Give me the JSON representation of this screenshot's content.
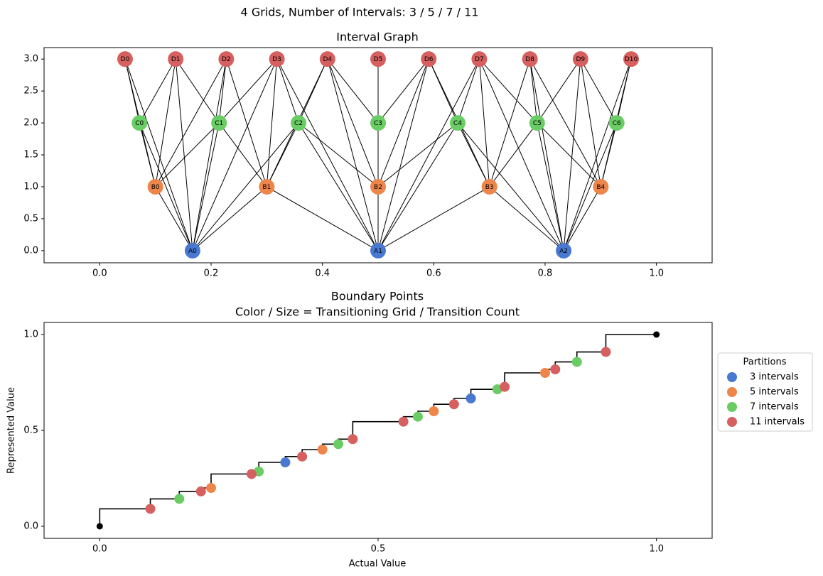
{
  "title": "4 Grids, Number of Intervals: 3 / 5 / 7 / 11",
  "chart_data": [
    {
      "type": "graph",
      "title": "Interval Graph",
      "xlim": [
        -0.1,
        1.1
      ],
      "ylim": [
        -0.19,
        3.18
      ],
      "xticks": [
        {
          "value": 0,
          "label": "0.0"
        },
        0.2,
        0.4,
        0.6,
        0.8,
        {
          "value": 1,
          "label": "1.0"
        }
      ],
      "yticks": [
        {
          "value": 0,
          "label": "0.0"
        },
        0.5,
        {
          "value": 1,
          "label": "1.0"
        },
        1.5,
        {
          "value": 2,
          "label": "2.0"
        },
        2.5,
        {
          "value": 3,
          "label": "3.0"
        }
      ],
      "edge_color": "#000000",
      "nodes": [
        {
          "label": "A0",
          "x": 0.1667,
          "y": 0,
          "color": "#4878d0"
        },
        {
          "label": "A1",
          "x": 0.5,
          "y": 0,
          "color": "#4878d0"
        },
        {
          "label": "A2",
          "x": 0.8333,
          "y": 0,
          "color": "#4878d0"
        },
        {
          "label": "B0",
          "x": 0.1,
          "y": 1,
          "color": "#ee854a"
        },
        {
          "label": "B1",
          "x": 0.3,
          "y": 1,
          "color": "#ee854a"
        },
        {
          "label": "B2",
          "x": 0.5,
          "y": 1,
          "color": "#ee854a"
        },
        {
          "label": "B3",
          "x": 0.7,
          "y": 1,
          "color": "#ee854a"
        },
        {
          "label": "B4",
          "x": 0.9,
          "y": 1,
          "color": "#ee854a"
        },
        {
          "label": "C0",
          "x": 0.0714,
          "y": 2,
          "color": "#6acc64"
        },
        {
          "label": "C1",
          "x": 0.2143,
          "y": 2,
          "color": "#6acc64"
        },
        {
          "label": "C2",
          "x": 0.3571,
          "y": 2,
          "color": "#6acc64"
        },
        {
          "label": "C3",
          "x": 0.5,
          "y": 2,
          "color": "#6acc64"
        },
        {
          "label": "C4",
          "x": 0.6429,
          "y": 2,
          "color": "#6acc64"
        },
        {
          "label": "C5",
          "x": 0.7857,
          "y": 2,
          "color": "#6acc64"
        },
        {
          "label": "C6",
          "x": 0.9286,
          "y": 2,
          "color": "#6acc64"
        },
        {
          "label": "D0",
          "x": 0.0455,
          "y": 3,
          "color": "#d65f5f"
        },
        {
          "label": "D1",
          "x": 0.1364,
          "y": 3,
          "color": "#d65f5f"
        },
        {
          "label": "D2",
          "x": 0.2273,
          "y": 3,
          "color": "#d65f5f"
        },
        {
          "label": "D3",
          "x": 0.3182,
          "y": 3,
          "color": "#d65f5f"
        },
        {
          "label": "D4",
          "x": 0.4091,
          "y": 3,
          "color": "#d65f5f"
        },
        {
          "label": "D5",
          "x": 0.5,
          "y": 3,
          "color": "#d65f5f"
        },
        {
          "label": "D6",
          "x": 0.5909,
          "y": 3,
          "color": "#d65f5f"
        },
        {
          "label": "D7",
          "x": 0.6818,
          "y": 3,
          "color": "#d65f5f"
        },
        {
          "label": "D8",
          "x": 0.7727,
          "y": 3,
          "color": "#d65f5f"
        },
        {
          "label": "D9",
          "x": 0.8636,
          "y": 3,
          "color": "#d65f5f"
        },
        {
          "label": "D10",
          "x": 0.9545,
          "y": 3,
          "color": "#d65f5f"
        }
      ],
      "edges": [
        [
          "A0",
          "B0"
        ],
        [
          "A0",
          "B1"
        ],
        [
          "A1",
          "B1"
        ],
        [
          "A1",
          "B2"
        ],
        [
          "A1",
          "B3"
        ],
        [
          "A2",
          "B3"
        ],
        [
          "A2",
          "B4"
        ],
        [
          "A0",
          "C0"
        ],
        [
          "A0",
          "C1"
        ],
        [
          "A0",
          "C2"
        ],
        [
          "A1",
          "C2"
        ],
        [
          "A1",
          "C3"
        ],
        [
          "A1",
          "C4"
        ],
        [
          "A2",
          "C4"
        ],
        [
          "A2",
          "C5"
        ],
        [
          "A2",
          "C6"
        ],
        [
          "A0",
          "D0"
        ],
        [
          "A0",
          "D1"
        ],
        [
          "A0",
          "D2"
        ],
        [
          "A0",
          "D3"
        ],
        [
          "A1",
          "D3"
        ],
        [
          "A1",
          "D4"
        ],
        [
          "A1",
          "D5"
        ],
        [
          "A1",
          "D6"
        ],
        [
          "A1",
          "D7"
        ],
        [
          "A2",
          "D7"
        ],
        [
          "A2",
          "D8"
        ],
        [
          "A2",
          "D9"
        ],
        [
          "A2",
          "D10"
        ],
        [
          "B0",
          "C0"
        ],
        [
          "B0",
          "C1"
        ],
        [
          "B1",
          "C1"
        ],
        [
          "B1",
          "C2"
        ],
        [
          "B2",
          "C2"
        ],
        [
          "B2",
          "C3"
        ],
        [
          "B2",
          "C4"
        ],
        [
          "B3",
          "C4"
        ],
        [
          "B3",
          "C5"
        ],
        [
          "B4",
          "C5"
        ],
        [
          "B4",
          "C6"
        ],
        [
          "B0",
          "D0"
        ],
        [
          "B0",
          "D1"
        ],
        [
          "B0",
          "D2"
        ],
        [
          "B1",
          "D2"
        ],
        [
          "B1",
          "D3"
        ],
        [
          "B1",
          "D4"
        ],
        [
          "B2",
          "D4"
        ],
        [
          "B2",
          "D5"
        ],
        [
          "B2",
          "D6"
        ],
        [
          "B3",
          "D6"
        ],
        [
          "B3",
          "D7"
        ],
        [
          "B3",
          "D8"
        ],
        [
          "B4",
          "D8"
        ],
        [
          "B4",
          "D9"
        ],
        [
          "B4",
          "D10"
        ],
        [
          "C0",
          "D0"
        ],
        [
          "C0",
          "D1"
        ],
        [
          "C1",
          "D1"
        ],
        [
          "C1",
          "D2"
        ],
        [
          "C1",
          "D3"
        ],
        [
          "C2",
          "D3"
        ],
        [
          "C2",
          "D4"
        ],
        [
          "C3",
          "D4"
        ],
        [
          "C3",
          "D5"
        ],
        [
          "C3",
          "D6"
        ],
        [
          "C4",
          "D6"
        ],
        [
          "C4",
          "D7"
        ],
        [
          "C5",
          "D7"
        ],
        [
          "C5",
          "D8"
        ],
        [
          "C5",
          "D9"
        ],
        [
          "C6",
          "D9"
        ],
        [
          "C6",
          "D10"
        ]
      ]
    },
    {
      "type": "scatter",
      "title": "Boundary Points",
      "subtitle": "Color / Size = Transitioning Grid / Transition Count",
      "x_label": "Actual Value",
      "y_label": "Represented Value",
      "xlim": [
        -0.1,
        1.1
      ],
      "ylim": [
        -0.063,
        1.063
      ],
      "xticks": [
        {
          "value": 0,
          "label": "0.0"
        },
        0.5,
        {
          "value": 1,
          "label": "1.0"
        }
      ],
      "yticks": [
        {
          "value": 0,
          "label": "0.0"
        },
        0.5,
        {
          "value": 1,
          "label": "1.0"
        }
      ],
      "legend": "outside right",
      "legend_title": "Partitions",
      "step": {
        "color": "#000000",
        "drawstyle": "steps-pre",
        "x": [
          0,
          0.0909,
          0.1429,
          0.1818,
          0.2,
          0.2727,
          0.2857,
          0.3333,
          0.3636,
          0.4,
          0.4286,
          0.4545,
          0.5455,
          0.5714,
          0.6,
          0.6364,
          0.6667,
          0.7143,
          0.7273,
          0.8,
          0.8182,
          0.8571,
          0.9091,
          1
        ],
        "y": [
          0,
          0.0909,
          0.1429,
          0.1818,
          0.2,
          0.2727,
          0.2857,
          0.3333,
          0.3636,
          0.4,
          0.4286,
          0.4545,
          0.5455,
          0.5714,
          0.6,
          0.6364,
          0.6667,
          0.7143,
          0.7273,
          0.8,
          0.8182,
          0.8571,
          0.9091,
          1
        ]
      },
      "endpoints": {
        "color": "#000000",
        "x": [
          0,
          1
        ],
        "y": [
          0,
          1
        ]
      },
      "series": [
        {
          "name": "3 intervals",
          "color": "#4878d0",
          "x": [
            0.3333,
            0.6667
          ],
          "y": [
            0.3333,
            0.6667
          ]
        },
        {
          "name": "5 intervals",
          "color": "#ee854a",
          "x": [
            0.2,
            0.4,
            0.6,
            0.8
          ],
          "y": [
            0.2,
            0.4,
            0.6,
            0.8
          ]
        },
        {
          "name": "7 intervals",
          "color": "#6acc64",
          "x": [
            0.1429,
            0.2857,
            0.4286,
            0.5714,
            0.7143,
            0.8571
          ],
          "y": [
            0.1429,
            0.2857,
            0.4286,
            0.5714,
            0.7143,
            0.8571
          ]
        },
        {
          "name": "11 intervals",
          "color": "#d65f5f",
          "x": [
            0.0909,
            0.1818,
            0.2727,
            0.3636,
            0.4545,
            0.5455,
            0.6364,
            0.7273,
            0.8182,
            0.9091
          ],
          "y": [
            0.0909,
            0.1818,
            0.2727,
            0.3636,
            0.4545,
            0.5455,
            0.6364,
            0.7273,
            0.8182,
            0.9091
          ]
        }
      ]
    }
  ]
}
